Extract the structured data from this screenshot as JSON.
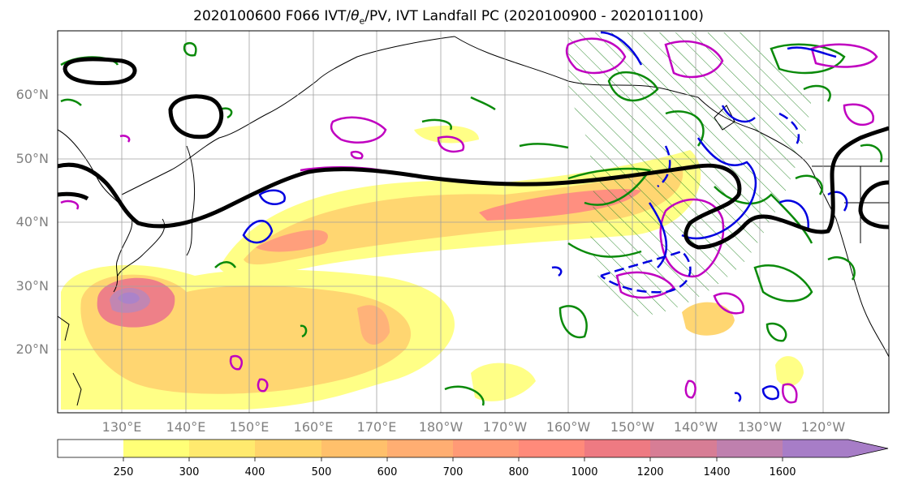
{
  "title_main": "2020100600 F066 IVT/",
  "title_sym": "θ",
  "title_sub": "e",
  "title_rest": "/PV, IVT Landfall PC (2020100900 - 2020101100)",
  "lat_labels": [
    "60°N",
    "50°N",
    "40°N",
    "30°N",
    "20°N"
  ],
  "lon_labels": [
    "130°E",
    "140°E",
    "150°E",
    "160°E",
    "170°E",
    "180°W",
    "170°W",
    "160°W",
    "150°W",
    "140°W",
    "130°W",
    "120°W"
  ],
  "colorbar": {
    "ticks": [
      "250",
      "300",
      "400",
      "500",
      "600",
      "700",
      "800",
      "1000",
      "1200",
      "1400",
      "1600"
    ],
    "colors": [
      "#ffff77",
      "#ffea6e",
      "#ffd46a",
      "#ffc06b",
      "#ffae72",
      "#ff9a76",
      "#ff8a7a",
      "#ee7a82",
      "#d77d95",
      "#bf80ae",
      "#a77dc7"
    ]
  }
}
